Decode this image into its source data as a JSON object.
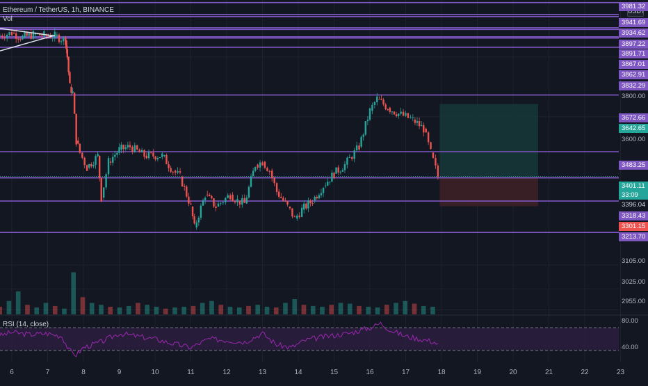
{
  "header": {
    "symbol": "Ethereum / TetherUS, 1h, BINANCE",
    "volume_label": "Vol",
    "currency": "USDT"
  },
  "rsi": {
    "label": "RSI (14, close)",
    "levels": [
      80,
      40
    ],
    "upper_band": 70,
    "lower_band": 30
  },
  "colors": {
    "background": "#131722",
    "up": "#26a69a",
    "down": "#ef5350",
    "level_line": "#7e57c2",
    "rsi_line": "#9c27b0",
    "rsi_band": "#2a1e3d",
    "position_profit": "#163a3a",
    "position_loss": "#3d1f26"
  },
  "chart_data": {
    "type": "candlestick",
    "x_tick_labels": [
      "6",
      "7",
      "8",
      "9",
      "10",
      "11",
      "12",
      "13",
      "14",
      "15",
      "16",
      "17",
      "18",
      "19",
      "20",
      "21",
      "22",
      "23"
    ],
    "price_axis_labels": [
      "3981.32",
      "3941.69",
      "3934.62",
      "3897.22",
      "3891.71",
      "3867.01",
      "3862.91",
      "3832.29",
      "3800.00",
      "3672.66",
      "3642.65",
      "3600.00",
      "3483.25",
      "3401.11",
      "33:09",
      "3396.04",
      "3318.43",
      "3301.15",
      "3213.70",
      "3105.00",
      "3025.00",
      "2955.00"
    ],
    "ylim": [
      2940,
      3990
    ],
    "horizontal_levels": [
      3981.32,
      3941.69,
      3934.62,
      3897.22,
      3891.71,
      3867.01,
      3862.91,
      3832.29,
      3672.66,
      3483.25,
      3396.04,
      3318.43,
      3213.7
    ],
    "current_price": 3401.11,
    "countdown": "33:09",
    "position_tool": {
      "entry": 3396.04,
      "target": 3642.65,
      "stop": 3301.15
    },
    "price_path": [
      [
        5.6,
        3870
      ],
      [
        6.0,
        3880
      ],
      [
        6.3,
        3865
      ],
      [
        6.6,
        3875
      ],
      [
        6.9,
        3872
      ],
      [
        7.2,
        3870
      ],
      [
        7.5,
        3855
      ],
      [
        7.55,
        3800
      ],
      [
        7.62,
        3700
      ],
      [
        7.7,
        3680
      ],
      [
        7.8,
        3520
      ],
      [
        7.9,
        3480
      ],
      [
        8.1,
        3430
      ],
      [
        8.4,
        3470
      ],
      [
        8.5,
        3330
      ],
      [
        8.7,
        3450
      ],
      [
        9.0,
        3490
      ],
      [
        9.3,
        3500
      ],
      [
        9.7,
        3470
      ],
      [
        10.2,
        3470
      ],
      [
        10.5,
        3420
      ],
      [
        10.7,
        3400
      ],
      [
        11.0,
        3300
      ],
      [
        11.1,
        3230
      ],
      [
        11.4,
        3340
      ],
      [
        11.7,
        3300
      ],
      [
        12.1,
        3340
      ],
      [
        12.3,
        3320
      ],
      [
        12.5,
        3310
      ],
      [
        12.8,
        3440
      ],
      [
        13.0,
        3450
      ],
      [
        13.2,
        3420
      ],
      [
        13.4,
        3350
      ],
      [
        13.7,
        3300
      ],
      [
        13.9,
        3260
      ],
      [
        14.1,
        3290
      ],
      [
        14.4,
        3320
      ],
      [
        14.7,
        3370
      ],
      [
        15.0,
        3410
      ],
      [
        15.3,
        3440
      ],
      [
        15.7,
        3500
      ],
      [
        16.0,
        3620
      ],
      [
        16.2,
        3660
      ],
      [
        16.5,
        3630
      ],
      [
        16.8,
        3610
      ],
      [
        17.2,
        3590
      ],
      [
        17.5,
        3560
      ],
      [
        17.7,
        3480
      ],
      [
        17.9,
        3400
      ]
    ],
    "rsi_path": [
      [
        5.6,
        55
      ],
      [
        6.0,
        62
      ],
      [
        6.5,
        58
      ],
      [
        7.0,
        60
      ],
      [
        7.4,
        55
      ],
      [
        7.6,
        30
      ],
      [
        7.8,
        22
      ],
      [
        8.0,
        35
      ],
      [
        8.5,
        45
      ],
      [
        9.0,
        60
      ],
      [
        9.5,
        55
      ],
      [
        10.0,
        50
      ],
      [
        10.5,
        42
      ],
      [
        11.0,
        35
      ],
      [
        11.5,
        50
      ],
      [
        12.0,
        48
      ],
      [
        12.5,
        45
      ],
      [
        13.0,
        60
      ],
      [
        13.4,
        40
      ],
      [
        13.8,
        35
      ],
      [
        14.2,
        48
      ],
      [
        14.8,
        55
      ],
      [
        15.4,
        60
      ],
      [
        16.0,
        70
      ],
      [
        16.3,
        78
      ],
      [
        16.6,
        65
      ],
      [
        17.0,
        55
      ],
      [
        17.4,
        50
      ],
      [
        17.8,
        45
      ],
      [
        17.95,
        37
      ]
    ],
    "volume_bars": [
      20,
      35,
      60,
      25,
      18,
      30,
      22,
      15,
      110,
      45,
      30,
      25,
      20,
      18,
      22,
      30,
      25,
      20,
      15,
      18,
      20,
      22,
      30,
      35,
      25,
      20,
      18,
      22,
      25,
      20,
      18,
      30,
      40,
      25,
      22,
      20,
      25,
      30,
      28,
      22,
      20,
      18,
      25,
      30,
      35,
      28,
      22,
      20
    ]
  }
}
